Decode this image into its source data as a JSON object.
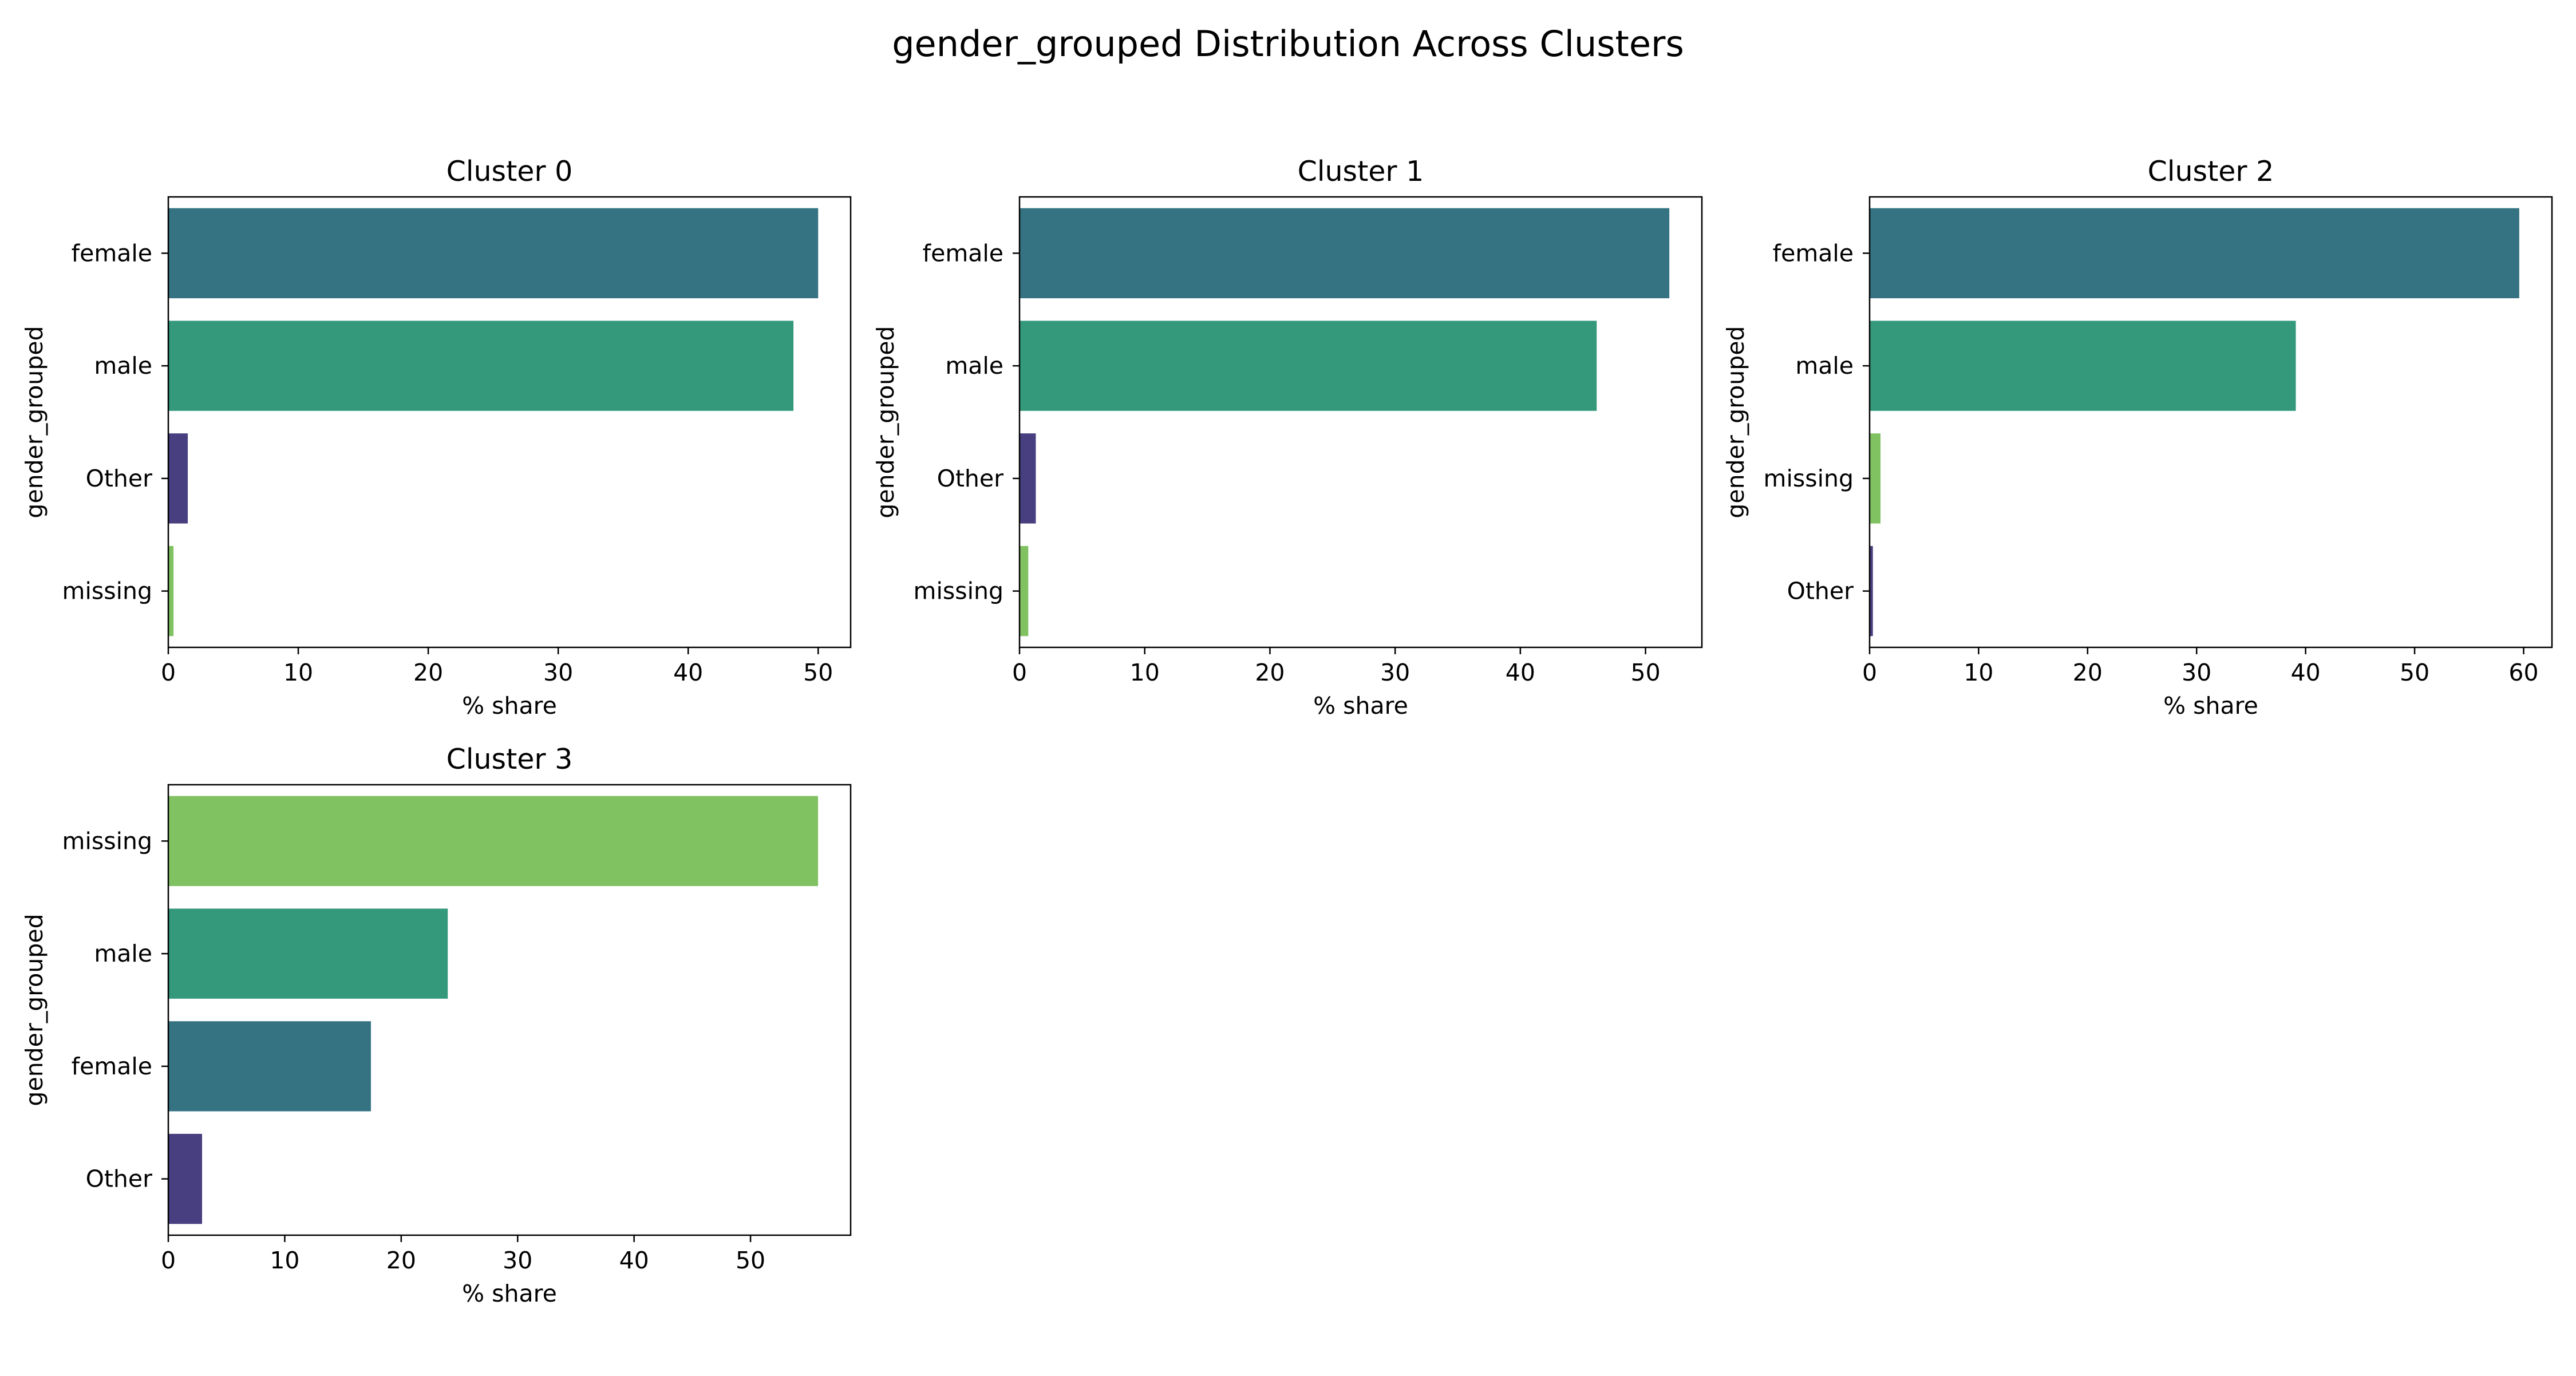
{
  "figure": {
    "title": "gender_grouped Distribution Across Clusters"
  },
  "colors": {
    "female": "#357382",
    "male": "#34997b",
    "Other": "#473f7f",
    "missing": "#80c262",
    "axis": "#000000"
  },
  "chart_data": [
    {
      "type": "bar",
      "orientation": "horizontal",
      "title": "Cluster 0",
      "xlabel": "% share",
      "ylabel": "gender_grouped",
      "categories": [
        "female",
        "male",
        "Other",
        "missing"
      ],
      "values": [
        50.0,
        48.1,
        1.5,
        0.4
      ],
      "xlim": [
        0,
        52.5
      ],
      "xticks": [
        0,
        10,
        20,
        30,
        40,
        50
      ],
      "grid": false
    },
    {
      "type": "bar",
      "orientation": "horizontal",
      "title": "Cluster 1",
      "xlabel": "% share",
      "ylabel": "gender_grouped",
      "categories": [
        "female",
        "male",
        "Other",
        "missing"
      ],
      "values": [
        51.9,
        46.1,
        1.3,
        0.7
      ],
      "xlim": [
        0,
        54.5
      ],
      "xticks": [
        0,
        10,
        20,
        30,
        40,
        50
      ],
      "grid": false
    },
    {
      "type": "bar",
      "orientation": "horizontal",
      "title": "Cluster 2",
      "xlabel": "% share",
      "ylabel": "gender_grouped",
      "categories": [
        "female",
        "male",
        "missing",
        "Other"
      ],
      "values": [
        59.6,
        39.1,
        1.0,
        0.3
      ],
      "xlim": [
        0,
        62.6
      ],
      "xticks": [
        0,
        10,
        20,
        30,
        40,
        50,
        60
      ],
      "grid": false
    },
    {
      "type": "bar",
      "orientation": "horizontal",
      "title": "Cluster 3",
      "xlabel": "% share",
      "ylabel": "gender_grouped",
      "categories": [
        "missing",
        "male",
        "female",
        "Other"
      ],
      "values": [
        55.8,
        24.0,
        17.4,
        2.9
      ],
      "xlim": [
        0,
        58.6
      ],
      "xticks": [
        0,
        10,
        20,
        30,
        40,
        50
      ],
      "grid": false
    }
  ]
}
